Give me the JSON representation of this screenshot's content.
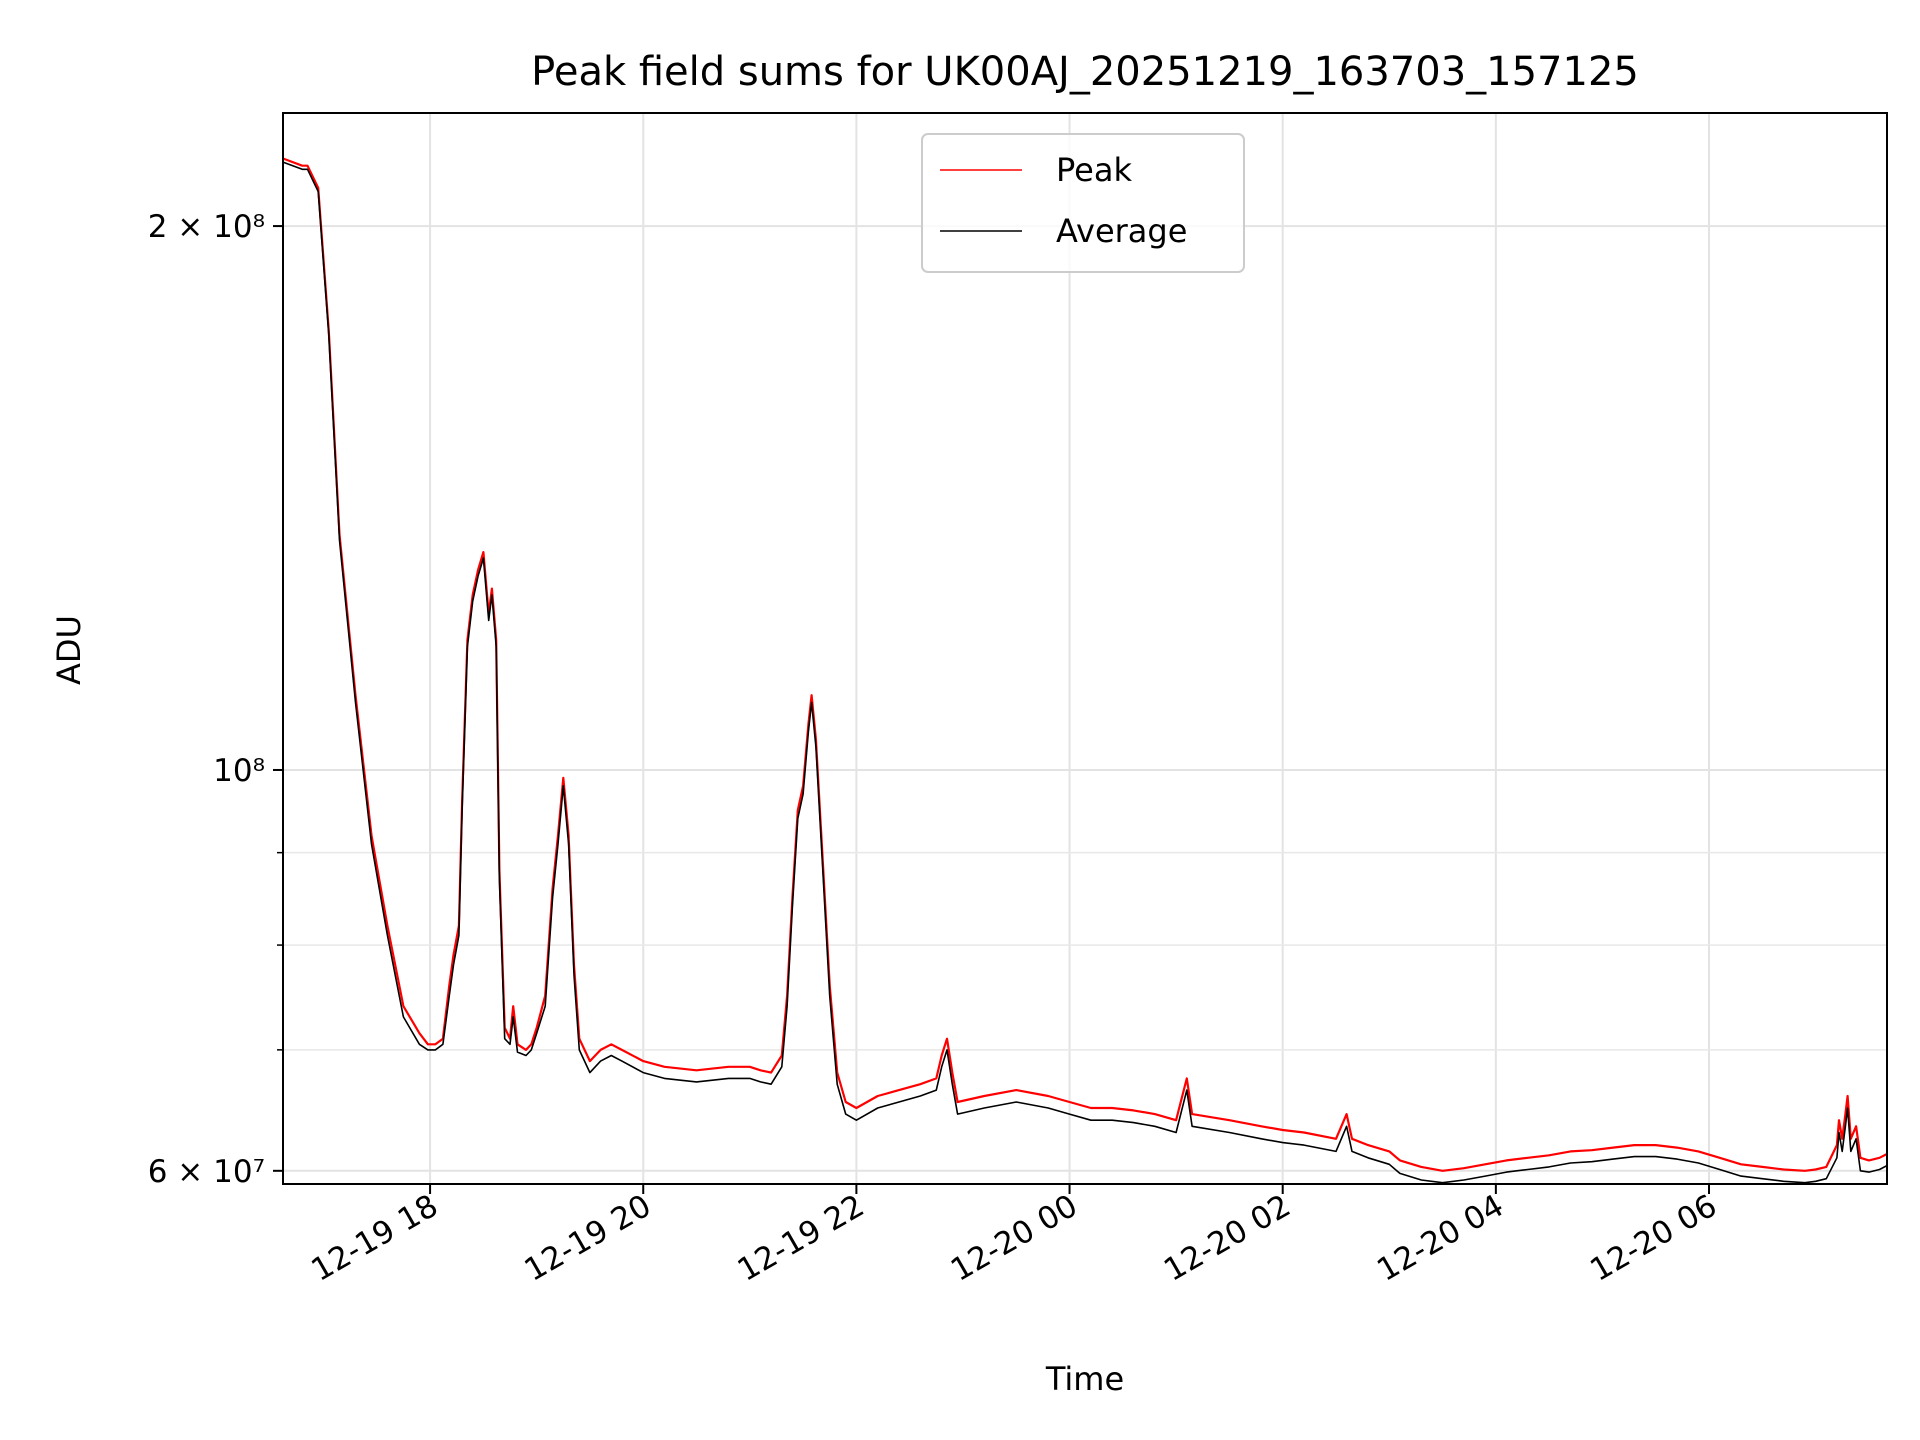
{
  "chart_data": {
    "type": "line",
    "title": "Peak field sums for UK00AJ_20251219_163703_157125",
    "xlabel": "Time",
    "ylabel": "ADU",
    "yscale": "log",
    "ylim": [
      59000000,
      231000000
    ],
    "xlim_hours": [
      16.62,
      31.67
    ],
    "grid": true,
    "legend_position": "top-center",
    "x_ticks": [
      {
        "hour": 18,
        "label": "12-19 18"
      },
      {
        "hour": 20,
        "label": "12-19 20"
      },
      {
        "hour": 22,
        "label": "12-19 22"
      },
      {
        "hour": 24,
        "label": "12-20 00"
      },
      {
        "hour": 26,
        "label": "12-20 02"
      },
      {
        "hour": 28,
        "label": "12-20 04"
      },
      {
        "hour": 30,
        "label": "12-20 06"
      }
    ],
    "y_major_ticks": [
      {
        "value": 60000000,
        "label": "6 × 10⁷"
      },
      {
        "value": 100000000,
        "label": "10⁸"
      },
      {
        "value": 200000000,
        "label": "2 × 10⁸"
      }
    ],
    "y_minor_ticks": [
      70000000,
      80000000,
      90000000
    ],
    "series": [
      {
        "name": "Peak",
        "color": "#ff0000",
        "comment_points": "hour since 12-19 00:00, ADU",
        "points": [
          [
            16.62,
            218000000
          ],
          [
            16.8,
            216000000
          ],
          [
            16.85,
            216000000
          ],
          [
            16.95,
            210000000
          ],
          [
            17.05,
            175000000
          ],
          [
            17.15,
            135000000
          ],
          [
            17.3,
            110000000
          ],
          [
            17.45,
            92000000
          ],
          [
            17.6,
            82000000
          ],
          [
            17.75,
            74000000
          ],
          [
            17.9,
            71500000
          ],
          [
            17.98,
            70500000
          ],
          [
            18.05,
            70500000
          ],
          [
            18.12,
            71000000
          ],
          [
            18.18,
            76000000
          ],
          [
            18.22,
            79000000
          ],
          [
            18.27,
            82000000
          ],
          [
            18.3,
            96000000
          ],
          [
            18.35,
            118000000
          ],
          [
            18.4,
            125000000
          ],
          [
            18.45,
            129000000
          ],
          [
            18.5,
            132000000
          ],
          [
            18.55,
            122000000
          ],
          [
            18.58,
            126000000
          ],
          [
            18.62,
            118000000
          ],
          [
            18.65,
            88000000
          ],
          [
            18.7,
            72000000
          ],
          [
            18.75,
            71000000
          ],
          [
            18.78,
            74000000
          ],
          [
            18.82,
            70500000
          ],
          [
            18.9,
            70000000
          ],
          [
            18.95,
            70500000
          ],
          [
            19.0,
            72000000
          ],
          [
            19.08,
            75000000
          ],
          [
            19.15,
            86000000
          ],
          [
            19.2,
            92000000
          ],
          [
            19.25,
            99000000
          ],
          [
            19.3,
            92000000
          ],
          [
            19.35,
            78000000
          ],
          [
            19.4,
            71000000
          ],
          [
            19.5,
            69000000
          ],
          [
            19.6,
            70000000
          ],
          [
            19.7,
            70500000
          ],
          [
            19.8,
            70000000
          ],
          [
            20.0,
            69000000
          ],
          [
            20.2,
            68500000
          ],
          [
            20.5,
            68200000
          ],
          [
            20.8,
            68500000
          ],
          [
            21.0,
            68500000
          ],
          [
            21.1,
            68200000
          ],
          [
            21.2,
            68000000
          ],
          [
            21.3,
            69500000
          ],
          [
            21.35,
            75000000
          ],
          [
            21.4,
            85000000
          ],
          [
            21.45,
            95000000
          ],
          [
            21.5,
            98000000
          ],
          [
            21.55,
            106000000
          ],
          [
            21.58,
            110000000
          ],
          [
            21.62,
            104000000
          ],
          [
            21.68,
            90000000
          ],
          [
            21.75,
            76000000
          ],
          [
            21.82,
            68000000
          ],
          [
            21.9,
            65500000
          ],
          [
            22.0,
            65000000
          ],
          [
            22.2,
            66000000
          ],
          [
            22.4,
            66500000
          ],
          [
            22.6,
            67000000
          ],
          [
            22.75,
            67500000
          ],
          [
            22.8,
            69500000
          ],
          [
            22.85,
            71000000
          ],
          [
            22.9,
            68000000
          ],
          [
            22.95,
            65500000
          ],
          [
            23.2,
            66000000
          ],
          [
            23.5,
            66500000
          ],
          [
            23.8,
            66000000
          ],
          [
            24.0,
            65500000
          ],
          [
            24.2,
            65000000
          ],
          [
            24.4,
            65000000
          ],
          [
            24.6,
            64800000
          ],
          [
            24.8,
            64500000
          ],
          [
            25.0,
            64000000
          ],
          [
            25.1,
            67500000
          ],
          [
            25.15,
            64500000
          ],
          [
            25.5,
            64000000
          ],
          [
            25.8,
            63500000
          ],
          [
            26.0,
            63200000
          ],
          [
            26.2,
            63000000
          ],
          [
            26.5,
            62500000
          ],
          [
            26.6,
            64500000
          ],
          [
            26.65,
            62500000
          ],
          [
            26.8,
            62000000
          ],
          [
            27.0,
            61500000
          ],
          [
            27.1,
            60800000
          ],
          [
            27.3,
            60300000
          ],
          [
            27.5,
            60000000
          ],
          [
            27.7,
            60200000
          ],
          [
            27.9,
            60500000
          ],
          [
            28.1,
            60800000
          ],
          [
            28.3,
            61000000
          ],
          [
            28.5,
            61200000
          ],
          [
            28.7,
            61500000
          ],
          [
            28.9,
            61600000
          ],
          [
            29.1,
            61800000
          ],
          [
            29.3,
            62000000
          ],
          [
            29.5,
            62000000
          ],
          [
            29.7,
            61800000
          ],
          [
            29.9,
            61500000
          ],
          [
            30.1,
            61000000
          ],
          [
            30.3,
            60500000
          ],
          [
            30.5,
            60300000
          ],
          [
            30.7,
            60100000
          ],
          [
            30.9,
            60000000
          ],
          [
            31.0,
            60100000
          ],
          [
            31.1,
            60300000
          ],
          [
            31.2,
            62000000
          ],
          [
            31.22,
            64000000
          ],
          [
            31.25,
            62500000
          ],
          [
            31.28,
            64500000
          ],
          [
            31.3,
            66000000
          ],
          [
            31.33,
            62500000
          ],
          [
            31.38,
            63500000
          ],
          [
            31.42,
            61000000
          ],
          [
            31.5,
            60800000
          ],
          [
            31.6,
            61000000
          ],
          [
            31.67,
            61300000
          ]
        ]
      },
      {
        "name": "Average",
        "color": "#000000",
        "points": [
          [
            16.62,
            217000000
          ],
          [
            16.8,
            215000000
          ],
          [
            16.85,
            215000000
          ],
          [
            16.95,
            209000000
          ],
          [
            17.05,
            174000000
          ],
          [
            17.15,
            134000000
          ],
          [
            17.3,
            109000000
          ],
          [
            17.45,
            91000000
          ],
          [
            17.6,
            81000000
          ],
          [
            17.75,
            73000000
          ],
          [
            17.9,
            70500000
          ],
          [
            17.98,
            70000000
          ],
          [
            18.05,
            70000000
          ],
          [
            18.12,
            70500000
          ],
          [
            18.18,
            75000000
          ],
          [
            18.22,
            78000000
          ],
          [
            18.27,
            81000000
          ],
          [
            18.3,
            95000000
          ],
          [
            18.35,
            117000000
          ],
          [
            18.4,
            124000000
          ],
          [
            18.45,
            128000000
          ],
          [
            18.5,
            131000000
          ],
          [
            18.55,
            121000000
          ],
          [
            18.58,
            125000000
          ],
          [
            18.62,
            117000000
          ],
          [
            18.65,
            87000000
          ],
          [
            18.7,
            71000000
          ],
          [
            18.75,
            70500000
          ],
          [
            18.78,
            73000000
          ],
          [
            18.82,
            69800000
          ],
          [
            18.9,
            69500000
          ],
          [
            18.95,
            70000000
          ],
          [
            19.0,
            71500000
          ],
          [
            19.08,
            74000000
          ],
          [
            19.15,
            85000000
          ],
          [
            19.2,
            91000000
          ],
          [
            19.25,
            98000000
          ],
          [
            19.3,
            91000000
          ],
          [
            19.35,
            77000000
          ],
          [
            19.4,
            70000000
          ],
          [
            19.5,
            68000000
          ],
          [
            19.6,
            69000000
          ],
          [
            19.7,
            69500000
          ],
          [
            19.8,
            69000000
          ],
          [
            20.0,
            68000000
          ],
          [
            20.2,
            67500000
          ],
          [
            20.5,
            67200000
          ],
          [
            20.8,
            67500000
          ],
          [
            21.0,
            67500000
          ],
          [
            21.1,
            67200000
          ],
          [
            21.2,
            67000000
          ],
          [
            21.3,
            68500000
          ],
          [
            21.35,
            74000000
          ],
          [
            21.4,
            84000000
          ],
          [
            21.45,
            94000000
          ],
          [
            21.5,
            97000000
          ],
          [
            21.55,
            105000000
          ],
          [
            21.58,
            109000000
          ],
          [
            21.62,
            103000000
          ],
          [
            21.68,
            89000000
          ],
          [
            21.75,
            75000000
          ],
          [
            21.82,
            67000000
          ],
          [
            21.9,
            64500000
          ],
          [
            22.0,
            64000000
          ],
          [
            22.2,
            65000000
          ],
          [
            22.4,
            65500000
          ],
          [
            22.6,
            66000000
          ],
          [
            22.75,
            66500000
          ],
          [
            22.8,
            68500000
          ],
          [
            22.85,
            70000000
          ],
          [
            22.9,
            67000000
          ],
          [
            22.95,
            64500000
          ],
          [
            23.2,
            65000000
          ],
          [
            23.5,
            65500000
          ],
          [
            23.8,
            65000000
          ],
          [
            24.0,
            64500000
          ],
          [
            24.2,
            64000000
          ],
          [
            24.4,
            64000000
          ],
          [
            24.6,
            63800000
          ],
          [
            24.8,
            63500000
          ],
          [
            25.0,
            63000000
          ],
          [
            25.1,
            66500000
          ],
          [
            25.15,
            63500000
          ],
          [
            25.5,
            63000000
          ],
          [
            25.8,
            62500000
          ],
          [
            26.0,
            62200000
          ],
          [
            26.2,
            62000000
          ],
          [
            26.5,
            61500000
          ],
          [
            26.6,
            63500000
          ],
          [
            26.65,
            61500000
          ],
          [
            26.8,
            61000000
          ],
          [
            27.0,
            60500000
          ],
          [
            27.1,
            59800000
          ],
          [
            27.3,
            59300000
          ],
          [
            27.5,
            59100000
          ],
          [
            27.7,
            59300000
          ],
          [
            27.9,
            59600000
          ],
          [
            28.1,
            59900000
          ],
          [
            28.3,
            60100000
          ],
          [
            28.5,
            60300000
          ],
          [
            28.7,
            60600000
          ],
          [
            28.9,
            60700000
          ],
          [
            29.1,
            60900000
          ],
          [
            29.3,
            61100000
          ],
          [
            29.5,
            61100000
          ],
          [
            29.7,
            60900000
          ],
          [
            29.9,
            60600000
          ],
          [
            30.1,
            60100000
          ],
          [
            30.3,
            59600000
          ],
          [
            30.5,
            59400000
          ],
          [
            30.7,
            59200000
          ],
          [
            30.9,
            59100000
          ],
          [
            31.0,
            59200000
          ],
          [
            31.1,
            59400000
          ],
          [
            31.2,
            61000000
          ],
          [
            31.22,
            63000000
          ],
          [
            31.25,
            61500000
          ],
          [
            31.28,
            63500000
          ],
          [
            31.3,
            65000000
          ],
          [
            31.33,
            61500000
          ],
          [
            31.38,
            62500000
          ],
          [
            31.42,
            60000000
          ],
          [
            31.5,
            59900000
          ],
          [
            31.6,
            60100000
          ],
          [
            31.67,
            60400000
          ]
        ]
      }
    ]
  }
}
